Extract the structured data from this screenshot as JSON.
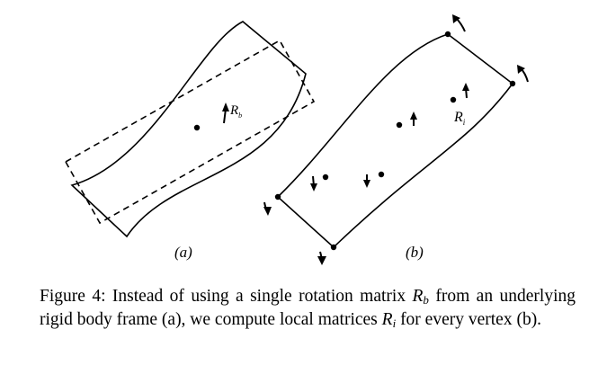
{
  "figure": {
    "panels": [
      {
        "id": "a",
        "label": "(a)",
        "rotation_label": "R",
        "rotation_sub": "b"
      },
      {
        "id": "b",
        "label": "(b)",
        "rotation_label": "R",
        "rotation_sub": "i"
      }
    ]
  },
  "caption": {
    "prefix": "Figure 4: Instead of using a single rotation matrix ",
    "math1": "R",
    "math1_sub": "b",
    "middle": " from an underlying rigid body frame (a), we compute local matrices ",
    "math2": "R",
    "math2_sub": "i",
    "suffix": " for every vertex (b)."
  }
}
